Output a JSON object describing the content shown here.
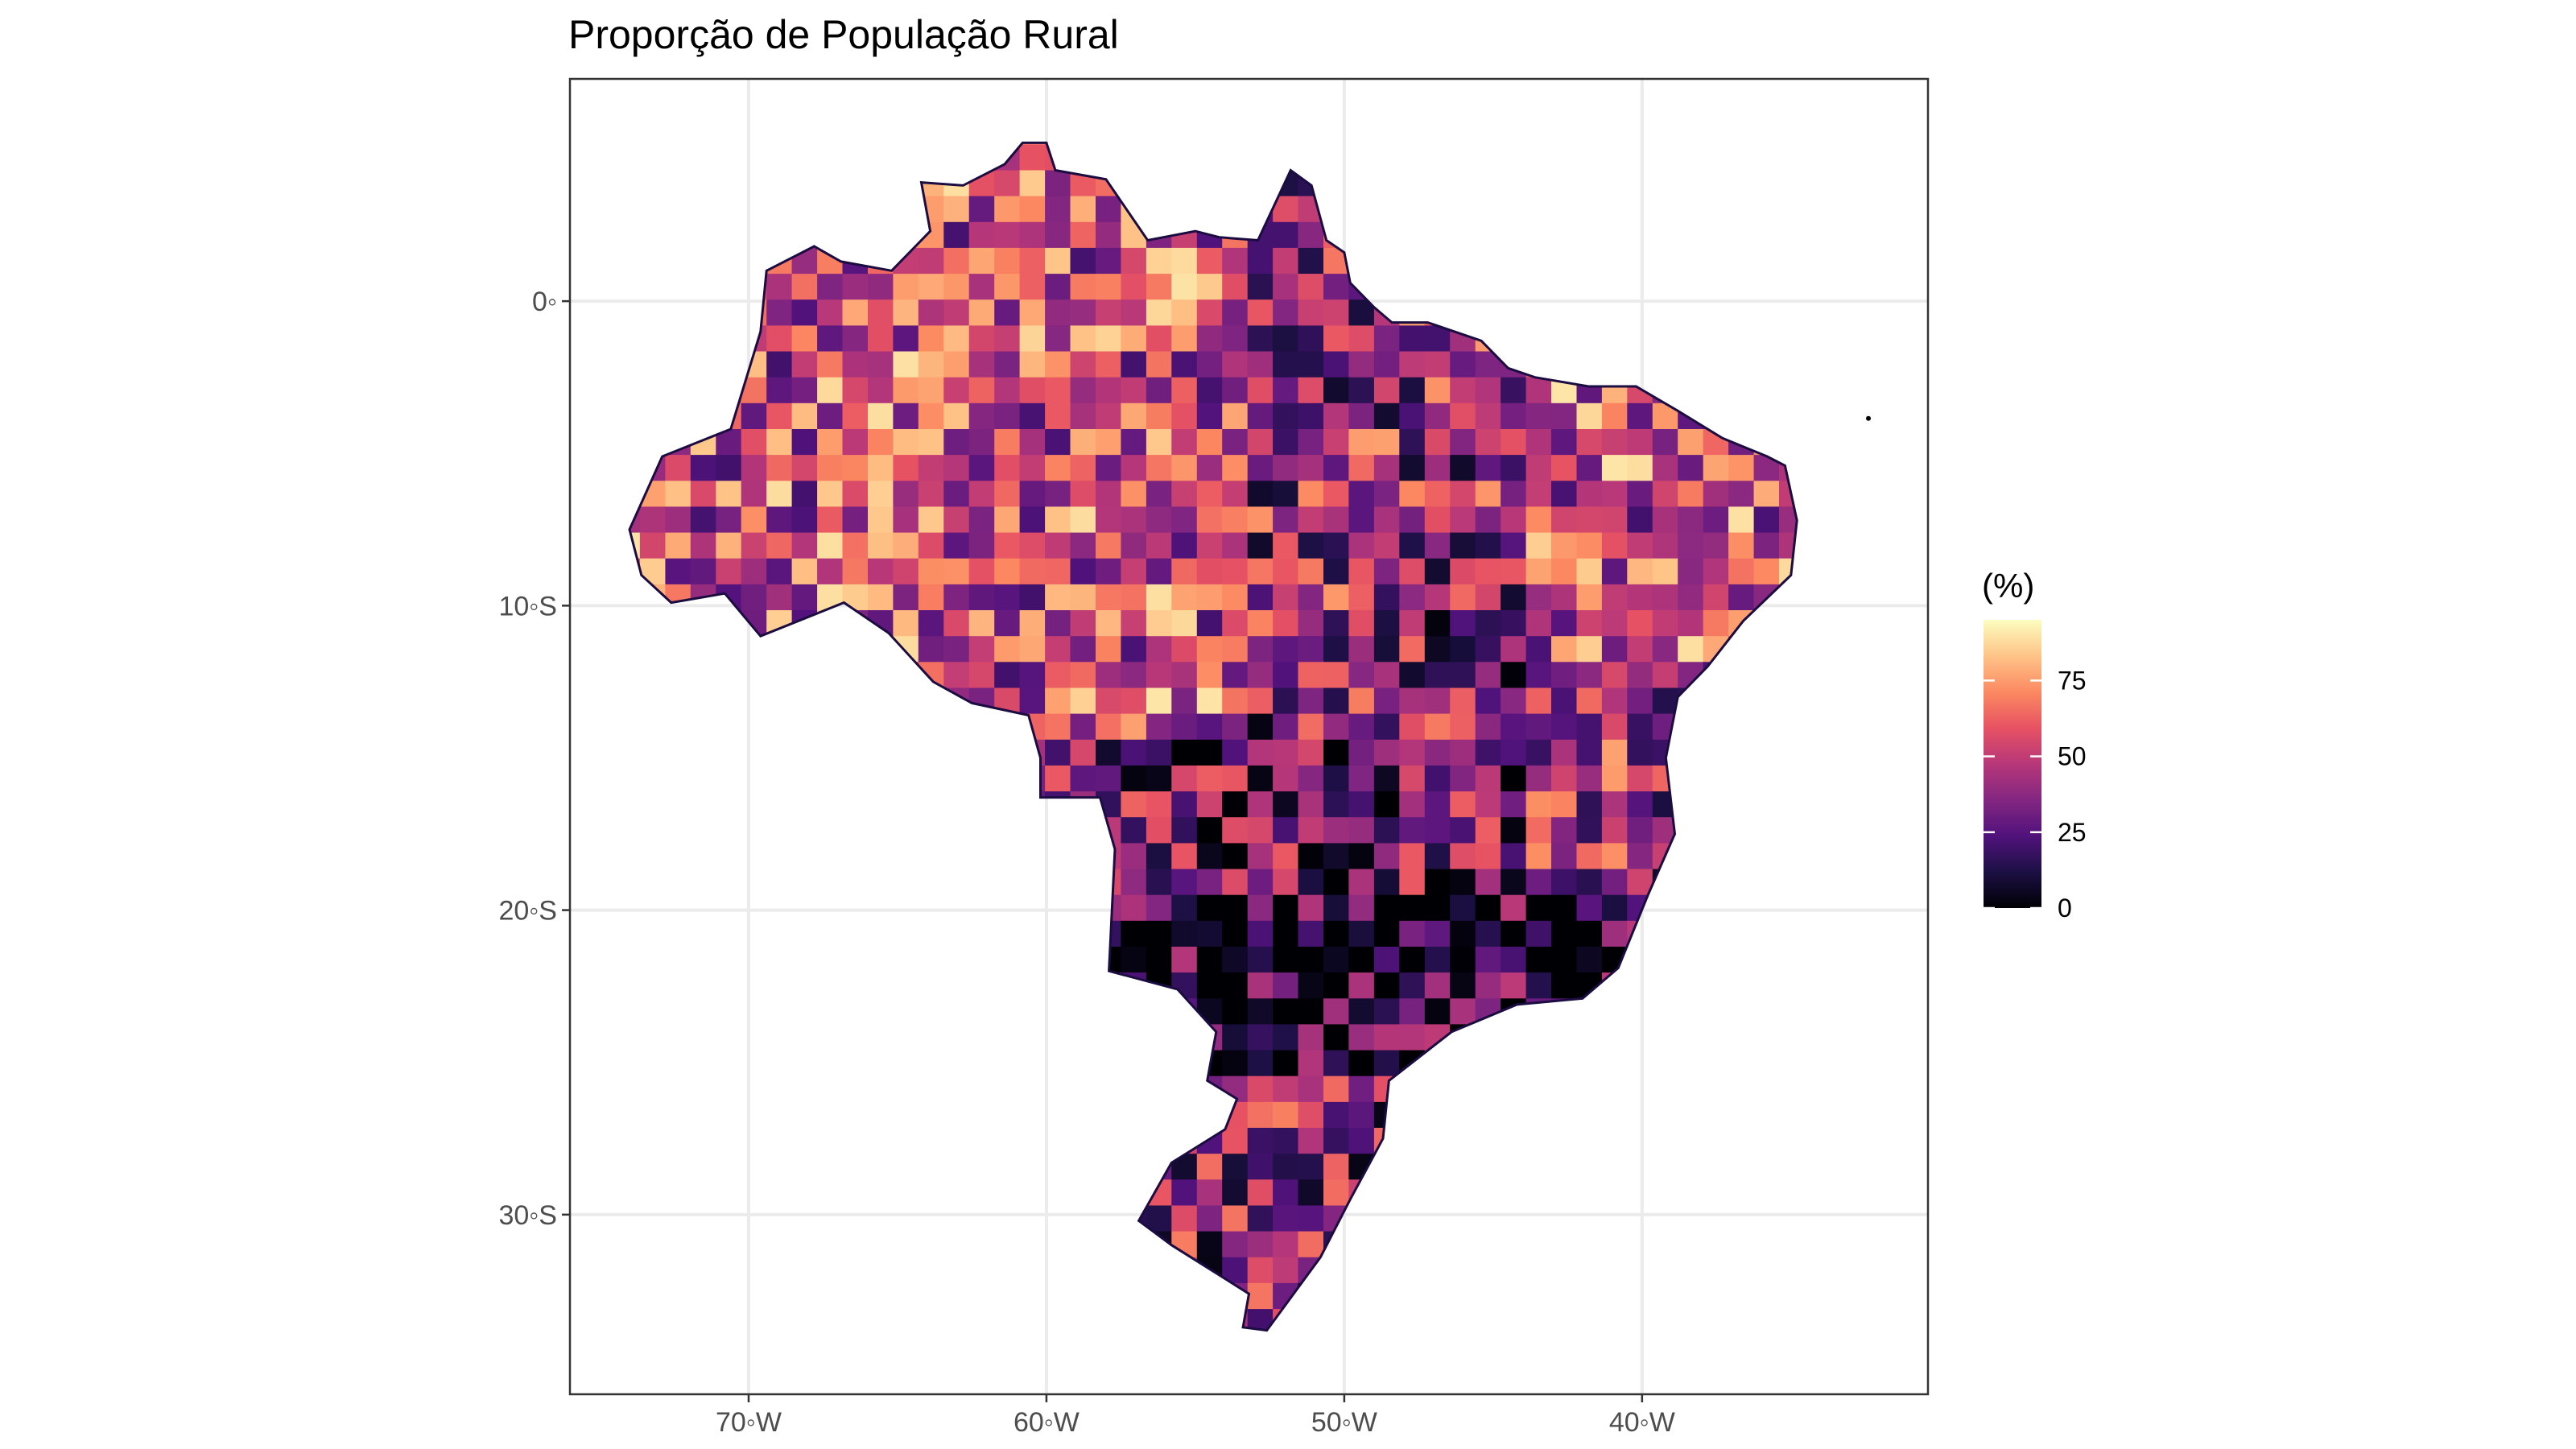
{
  "chart_data": {
    "type": "map",
    "title": "Proporção de População Rural",
    "xlabel": "",
    "ylabel": "",
    "x_ticks": [
      {
        "value": -70,
        "label": "70◦W"
      },
      {
        "value": -60,
        "label": "60◦W"
      },
      {
        "value": -50,
        "label": "50◦W"
      },
      {
        "value": -40,
        "label": "40◦W"
      }
    ],
    "y_ticks": [
      {
        "value": 0,
        "label": "0◦"
      },
      {
        "value": -10,
        "label": "10◦S"
      },
      {
        "value": -20,
        "label": "20◦S"
      },
      {
        "value": -30,
        "label": "30◦S"
      }
    ],
    "xlim": [
      -76,
      -30.4
    ],
    "ylim": [
      -35.9,
      7.3
    ],
    "grid": true,
    "legend": {
      "title": "(%)",
      "position": "right",
      "ticks": [
        0,
        25,
        50,
        75
      ],
      "range": [
        0,
        95
      ],
      "colormap": "magma",
      "stops": [
        "#000004",
        "#1c1044",
        "#51127c",
        "#832681",
        "#b73779",
        "#e75263",
        "#fc8961",
        "#fec488",
        "#fcfdbf"
      ]
    },
    "na_color": "#808080",
    "colors": {
      "panel_border": "#333333",
      "grid": "#ebebeb",
      "background": "#ffffff"
    }
  }
}
